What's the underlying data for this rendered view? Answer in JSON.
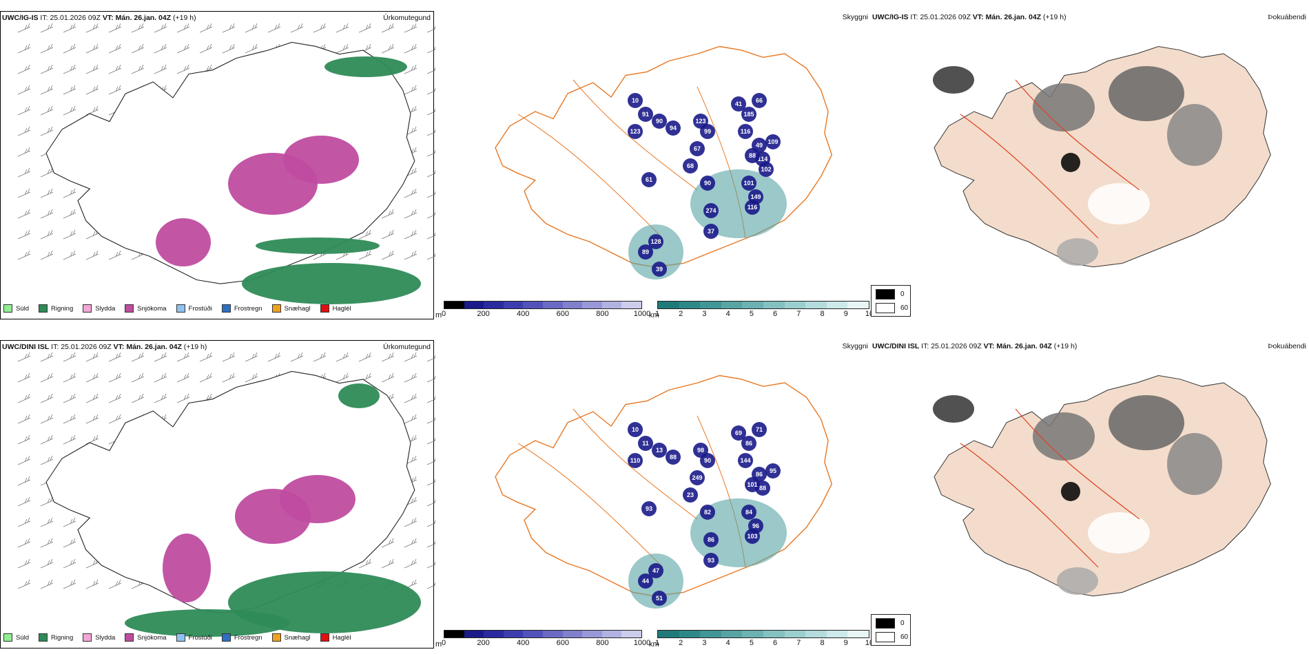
{
  "rows": [
    {
      "model": "UWC/IG-IS",
      "it_label": "IT:",
      "it_value": "25.01.2026 09Z",
      "vt_label": "VT:",
      "vt_value": "Mán. 26.jan. 04Z",
      "lead": "(+19 h)",
      "visibility_values": [
        "10",
        "91",
        "123",
        "90",
        "94",
        "61",
        "68",
        "67",
        "123",
        "99",
        "41",
        "185",
        "66",
        "116",
        "49",
        "109",
        "114",
        "88",
        "90",
        "101",
        "149",
        "116",
        "274",
        "37",
        "89",
        "128",
        "39",
        "102"
      ]
    },
    {
      "model": "UWC/DINI ISL",
      "it_label": "IT:",
      "it_value": "25.01.2026 09Z",
      "vt_label": "VT:",
      "vt_value": "Mán. 26.jan. 04Z",
      "lead": "(+19 h)",
      "visibility_values": [
        "10",
        "11",
        "110",
        "13",
        "88",
        "93",
        "23",
        "249",
        "98",
        "90",
        "69",
        "86",
        "71",
        "144",
        "86",
        "95",
        "88",
        "101",
        "82",
        "84",
        "96",
        "103",
        "86",
        "93",
        "44",
        "47",
        "51"
      ]
    }
  ],
  "panel_titles": {
    "precip_type": "Úrkomutegund",
    "visibility": "Skyggni",
    "fog": "Þokuábendi"
  },
  "precip_legend": [
    {
      "label": "Súld",
      "color": "#90EE90"
    },
    {
      "label": "Rigning",
      "color": "#2E8B57"
    },
    {
      "label": "Slydda",
      "color": "#F4A6D6"
    },
    {
      "label": "Snjókoma",
      "color": "#C04CA0"
    },
    {
      "label": "Frostúði",
      "color": "#8EC1F0"
    },
    {
      "label": "Frostregn",
      "color": "#2F6FC2"
    },
    {
      "label": "Snæhagl",
      "color": "#F0A020"
    },
    {
      "label": "Haglél",
      "color": "#E01010"
    }
  ],
  "cbar_m": {
    "unit": "m",
    "ticks": [
      "0",
      "200",
      "400",
      "600",
      "800",
      "1000"
    ],
    "colors": [
      "#000000",
      "#1a1a8a",
      "#2a2aa0",
      "#3d3db0",
      "#5252bb",
      "#6a6ac4",
      "#8080cd",
      "#9898d8",
      "#b2b2e2",
      "#cccced"
    ]
  },
  "cbar_km": {
    "unit": "km",
    "ticks": [
      "1",
      "2",
      "3",
      "4",
      "5",
      "6",
      "7",
      "8",
      "9",
      "10"
    ],
    "colors": [
      "#1f7a7a",
      "#2f8888",
      "#439696",
      "#58a4a4",
      "#6db2b2",
      "#84c1c1",
      "#9bcfcf",
      "#b4dcdc",
      "#cde9e9",
      "#e8f5f5"
    ]
  },
  "fog_legend": [
    {
      "label": "0",
      "color": "#000000"
    },
    {
      "label": "60",
      "color": "#ffffff"
    }
  ]
}
